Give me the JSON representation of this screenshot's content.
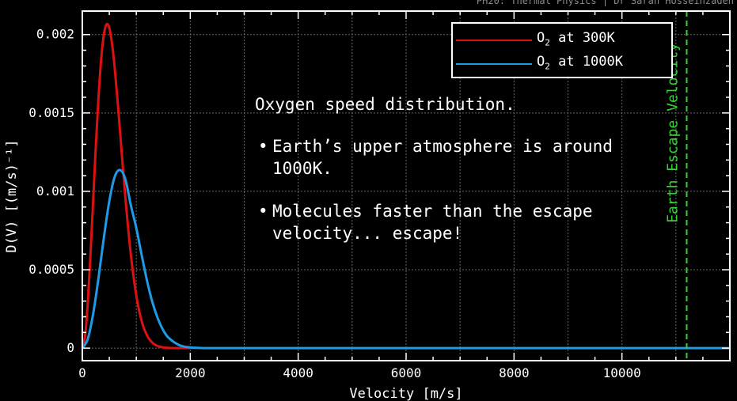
{
  "header_text": "PH20: Thermal Physics | Dr Sarah Hosseinzadeh",
  "annotation": {
    "title": "Oxygen speed distribution.",
    "bullets": [
      "Earth’s upper atmosphere is around 1000K.",
      "Molecules faster than the escape velocity... escape!"
    ]
  },
  "legend": {
    "items": [
      {
        "pre": "O",
        "sub": "2",
        "post": " at 300K"
      },
      {
        "pre": "O",
        "sub": "2",
        "post": " at 1000K"
      }
    ]
  },
  "colors": {
    "background": "#000000",
    "series_300K": "#dd1111",
    "series_1000K": "#1e9be6",
    "escape_line": "#3ccf3c",
    "grid": "#666666"
  },
  "chart_data": {
    "type": "line",
    "title": "",
    "xlabel": "Velocity [m/s]",
    "ylabel": "D(V) [(m/s)⁻¹]",
    "xlim": [
      0,
      12000
    ],
    "ylim": [
      -8e-05,
      0.00215
    ],
    "xticks": [
      0,
      2000,
      4000,
      6000,
      8000,
      10000
    ],
    "xtick_labels": [
      "0",
      "2000",
      "4000",
      "6000",
      "8000",
      "10000"
    ],
    "yticks": [
      0,
      0.0005,
      0.001,
      0.0015,
      0.002
    ],
    "ytick_labels": [
      "0",
      "0.0005",
      "0.001",
      "0.0015",
      "0.002"
    ],
    "grid": true,
    "legend_position": "top-right",
    "series": [
      {
        "name": "O2 at 300K",
        "color": "#dd1111",
        "x": [
          0,
          50,
          100,
          150,
          200,
          250,
          300,
          350,
          400,
          450,
          500,
          550,
          600,
          650,
          700,
          800,
          900,
          1000,
          1100,
          1200,
          1300,
          1400,
          1500,
          1600,
          1800,
          2000
        ],
        "y": [
          0,
          7.5e-05,
          0.000283,
          0.000587,
          0.000937,
          0.001288,
          0.001601,
          0.001845,
          0.002002,
          0.002066,
          0.002042,
          0.001943,
          0.001787,
          0.001591,
          0.001376,
          0.000951,
          0.000594,
          0.000335,
          0.000172,
          8.02e-05,
          3.4e-05,
          1.31e-05,
          4.6e-06,
          1.5e-06,
          1e-07,
          0
        ]
      },
      {
        "name": "O2 at 1000K",
        "color": "#1e9be6",
        "x": [
          0,
          100,
          200,
          300,
          400,
          500,
          600,
          700,
          800,
          900,
          1000,
          1100,
          1200,
          1300,
          1400,
          1500,
          1600,
          1800,
          2000,
          2200,
          2400,
          2600,
          3000,
          4000,
          6000,
          8000,
          10000,
          12000
        ],
        "y": [
          0,
          5.72e-05,
          0.000217,
          0.000448,
          0.000707,
          0.000938,
          0.001093,
          0.001136,
          0.001074,
          0.00091,
          0.000766,
          0.000593,
          0.000428,
          0.000291,
          0.000188,
          0.000114,
          6.57e-05,
          1.85e-05,
          4.3e-06,
          8e-07,
          1e-07,
          0,
          0,
          0,
          0,
          0,
          0,
          0
        ]
      }
    ],
    "vertical_line": {
      "x": 11200,
      "label": "Earth Escape Velocity",
      "color": "#3ccf3c",
      "style": "dashed"
    }
  }
}
